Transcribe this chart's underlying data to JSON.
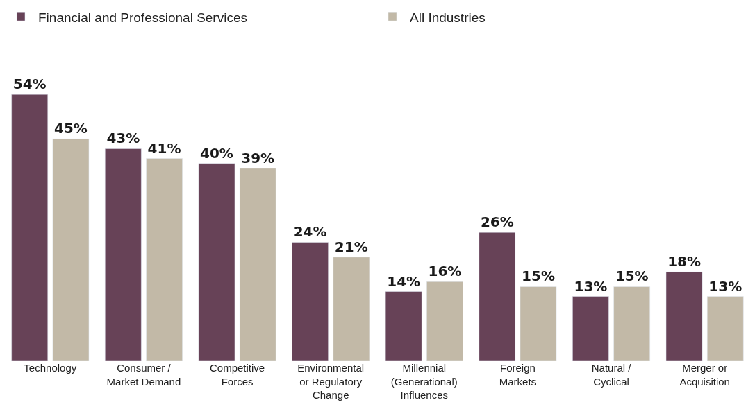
{
  "chart_data": {
    "type": "bar",
    "categories": [
      "Technology",
      "Consumer / Market Demand",
      "Competitive Forces",
      "Environmental or Regulatory Change",
      "Millennial (Generational) Influences",
      "Foreign Markets",
      "Natural / Cyclical",
      "Merger or Acquisition"
    ],
    "series": [
      {
        "name": "Financial and Professional Services",
        "color": "#674257",
        "values": [
          54,
          43,
          40,
          24,
          14,
          26,
          13,
          18
        ],
        "value_labels": [
          "54%",
          "43%",
          "40%",
          "24%",
          "14%",
          "26%",
          "13%",
          "18%"
        ]
      },
      {
        "name": "All Industries",
        "color": "#c2b9a7",
        "values": [
          45,
          41,
          39,
          21,
          16,
          15,
          15,
          13
        ],
        "value_labels": [
          "45%",
          "41%",
          "39%",
          "21%",
          "16%",
          "15%",
          "15%",
          "13%"
        ]
      }
    ],
    "legend": "top left",
    "tick_labels": "x"
  }
}
